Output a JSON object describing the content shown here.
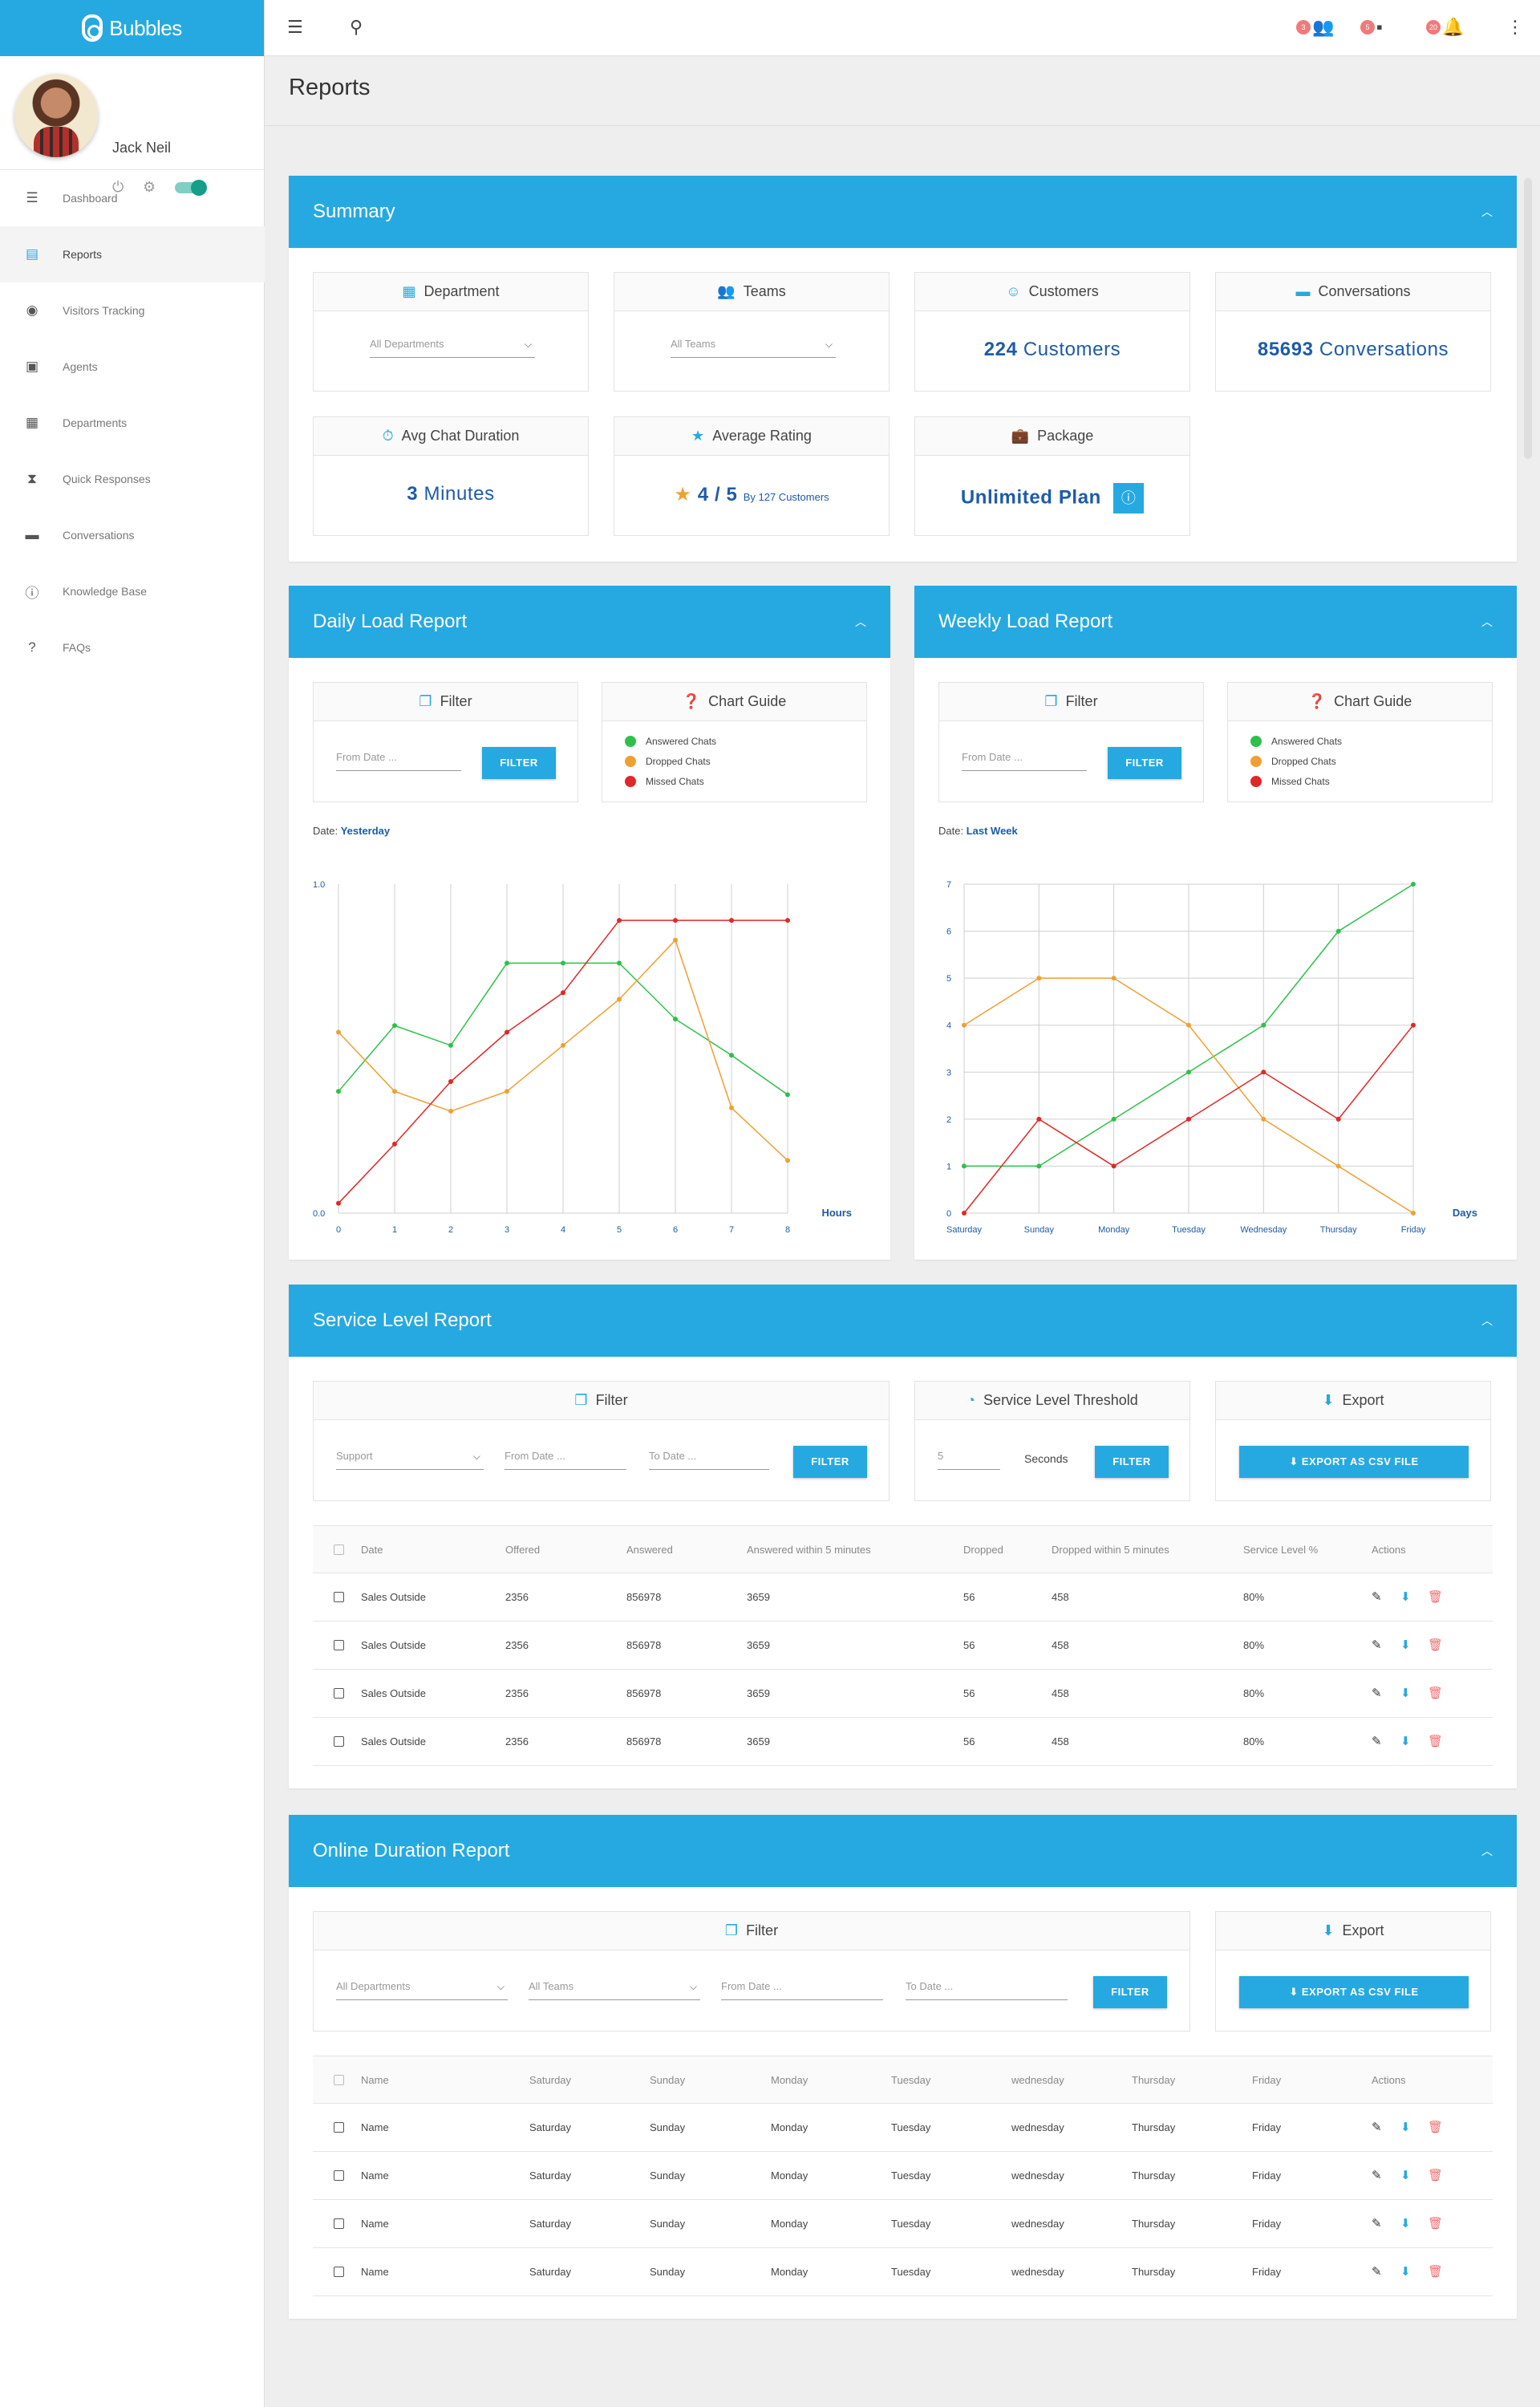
{
  "app": {
    "name": "Bubbles"
  },
  "user": {
    "name": "Jack Neil"
  },
  "nav": [
    {
      "label": "Dashboard",
      "icon": "sliders-icon"
    },
    {
      "label": "Reports",
      "icon": "clipboard-icon"
    },
    {
      "label": "Visitors Tracking",
      "icon": "compass-icon"
    },
    {
      "label": "Agents",
      "icon": "agent-card-icon"
    },
    {
      "label": "Departments",
      "icon": "grid-icon"
    },
    {
      "label": "Quick Responses",
      "icon": "hourglass-icon"
    },
    {
      "label": "Conversations",
      "icon": "chat-icon"
    },
    {
      "label": "Knowledge Base",
      "icon": "info-icon"
    },
    {
      "label": "FAQs",
      "icon": "help-icon"
    }
  ],
  "topbar": {
    "badges": [
      "3",
      "5",
      "20"
    ]
  },
  "page": {
    "title": "Reports"
  },
  "summary": {
    "title": "Summary",
    "department": {
      "label": "Department",
      "select": "All Departments"
    },
    "teams": {
      "label": "Teams",
      "select": "All Teams"
    },
    "customers": {
      "label": "Customers",
      "count": "224",
      "unit": "Customers"
    },
    "conversations": {
      "label": "Conversations",
      "count": "85693",
      "unit": "Conversations"
    },
    "avg_duration": {
      "label": "Avg Chat Duration",
      "count": "3",
      "unit": "Minutes"
    },
    "rating": {
      "label": "Average Rating",
      "value": "4 / 5",
      "by": "By 127 Customers"
    },
    "package": {
      "label": "Package",
      "value": "Unlimited Plan"
    }
  },
  "daily": {
    "title": "Daily Load Report",
    "filter_label": "Filter",
    "from_placeholder": "From Date ...",
    "button": "FILTER",
    "guide_label": "Chart Guide",
    "legend": [
      "Answered Chats",
      "Dropped Chats",
      "Missed Chats"
    ],
    "date_prefix": "Date:",
    "date_value": "Yesterday"
  },
  "weekly": {
    "title": "Weekly Load Report",
    "filter_label": "Filter",
    "from_placeholder": "From Date ...",
    "button": "FILTER",
    "guide_label": "Chart Guide",
    "legend": [
      "Answered Chats",
      "Dropped Chats",
      "Missed Chats"
    ],
    "date_prefix": "Date:",
    "date_value": "Last Week"
  },
  "chart_data": [
    {
      "type": "line",
      "x": [
        0,
        1,
        2,
        3,
        4,
        5,
        6,
        7,
        8
      ],
      "xlabel": "Hours",
      "ylim": [
        0,
        1
      ],
      "ytick_labels": [
        "0.0",
        "1.0"
      ],
      "grid": true,
      "series": [
        {
          "name": "Answered Chats",
          "color": "#2ec04b",
          "values": [
            0.37,
            0.57,
            0.51,
            0.76,
            0.76,
            0.76,
            0.59,
            0.48,
            0.36
          ]
        },
        {
          "name": "Dropped Chats",
          "color": "#f0a030",
          "values": [
            0.55,
            0.37,
            0.31,
            0.37,
            0.51,
            0.65,
            0.83,
            0.32,
            0.16
          ]
        },
        {
          "name": "Missed Chats",
          "color": "#e02828",
          "values": [
            0.03,
            0.21,
            0.4,
            0.55,
            0.67,
            0.89,
            0.89,
            0.89,
            0.89
          ]
        }
      ]
    },
    {
      "type": "line",
      "categories": [
        "Saturday",
        "Sunday",
        "Monday",
        "Tuesday",
        "Wednesday",
        "Thursday",
        "Friday"
      ],
      "xlabel": "Days",
      "ylim": [
        0,
        7
      ],
      "yticks": [
        0,
        1,
        2,
        3,
        4,
        5,
        6,
        7
      ],
      "grid": true,
      "series": [
        {
          "name": "Answered Chats",
          "color": "#2ec04b",
          "values": [
            1,
            1,
            2,
            3,
            4,
            6,
            7
          ]
        },
        {
          "name": "Dropped Chats",
          "color": "#f0a030",
          "values": [
            4,
            5,
            5,
            4,
            2,
            1,
            0
          ]
        },
        {
          "name": "Missed Chats",
          "color": "#e02828",
          "values": [
            0,
            2,
            1,
            2,
            3,
            2,
            4
          ]
        }
      ]
    }
  ],
  "service": {
    "title": "Service Level Report",
    "filter_label": "Filter",
    "select": "Support",
    "from_placeholder": "From Date ...",
    "to_placeholder": "To Date ...",
    "button": "FILTER",
    "threshold_label": "Service Level Threshold",
    "threshold_value": "5",
    "threshold_unit": "Seconds",
    "threshold_button": "FILTER",
    "export_label": "Export",
    "export_button": "EXPORT AS CSV FILE",
    "columns": [
      "Date",
      "Offered",
      "Answered",
      "Answered within 5 minutes",
      "Dropped",
      "Dropped within 5 minutes",
      "Service Level %",
      "Actions"
    ],
    "rows": [
      [
        "Sales Outside",
        "2356",
        "856978",
        "3659",
        "56",
        "458",
        "80%"
      ],
      [
        "Sales Outside",
        "2356",
        "856978",
        "3659",
        "56",
        "458",
        "80%"
      ],
      [
        "Sales Outside",
        "2356",
        "856978",
        "3659",
        "56",
        "458",
        "80%"
      ],
      [
        "Sales Outside",
        "2356",
        "856978",
        "3659",
        "56",
        "458",
        "80%"
      ]
    ]
  },
  "online": {
    "title": "Online Duration Report",
    "filter_label": "Filter",
    "dept_select": "All Departments",
    "team_select": "All Teams",
    "from_placeholder": "From Date ...",
    "to_placeholder": "To Date ...",
    "button": "FILTER",
    "export_label": "Export",
    "export_button": "EXPORT AS CSV FILE",
    "columns": [
      "Name",
      "Saturday",
      "Sunday",
      "Monday",
      "Tuesday",
      "wednesday",
      "Thursday",
      "Friday",
      "Actions"
    ],
    "rows": [
      [
        "Name",
        "Saturday",
        "Sunday",
        "Monday",
        "Tuesday",
        "wednesday",
        "Thursday",
        "Friday"
      ],
      [
        "Name",
        "Saturday",
        "Sunday",
        "Monday",
        "Tuesday",
        "wednesday",
        "Thursday",
        "Friday"
      ],
      [
        "Name",
        "Saturday",
        "Sunday",
        "Monday",
        "Tuesday",
        "wednesday",
        "Thursday",
        "Friday"
      ],
      [
        "Name",
        "Saturday",
        "Sunday",
        "Monday",
        "Tuesday",
        "wednesday",
        "Thursday",
        "Friday"
      ]
    ]
  }
}
